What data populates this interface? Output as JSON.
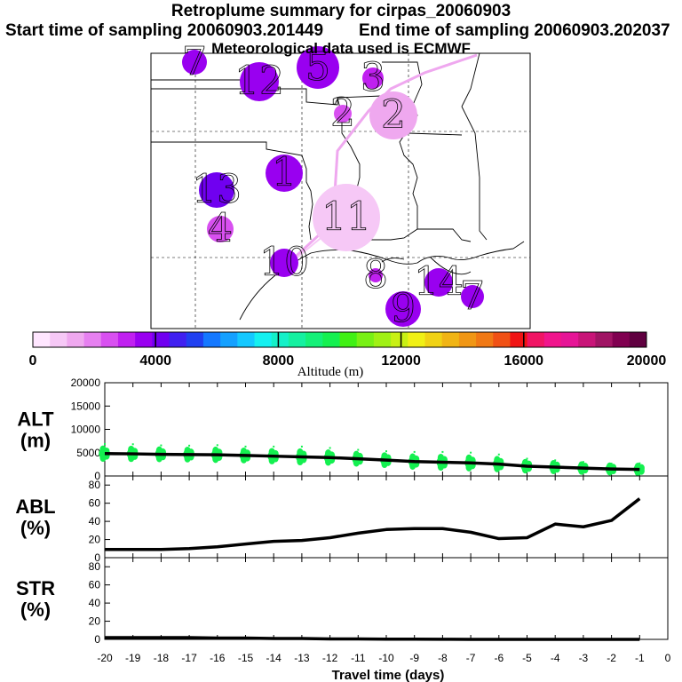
{
  "titles": {
    "main": "Retroplume summary for cirpas_20060903",
    "start": "Start time of sampling 20060903.201449",
    "end": "End time of sampling 20060903.202037",
    "met": "Meteorological data used is ECMWF"
  },
  "colorbar": {
    "label": "Altitude (m)",
    "ticks": [
      "0",
      "4000",
      "8000",
      "12000",
      "16000",
      "20000"
    ],
    "colors": [
      "#ffe6ff",
      "#f6c8f6",
      "#efa8ef",
      "#e680f0",
      "#d850f0",
      "#c020f0",
      "#9900f0",
      "#7000f0",
      "#4020f0",
      "#2040f0",
      "#1478ff",
      "#14a0ff",
      "#14c8ff",
      "#14f0f0",
      "#14f0c8",
      "#14f0a0",
      "#14f078",
      "#14f050",
      "#40f014",
      "#78f014",
      "#a0f014",
      "#c8f014",
      "#f0f014",
      "#f0d214",
      "#f0b414",
      "#f09614",
      "#f07814",
      "#f05014",
      "#f01414",
      "#f01464",
      "#f0148c",
      "#e61496",
      "#c81478",
      "#a01464",
      "#800050",
      "#600040"
    ]
  },
  "map_markers": [
    {
      "label": "7",
      "color": "#9900f0",
      "r": 14
    },
    {
      "label": "12",
      "color": "#9900f0",
      "r": 22
    },
    {
      "label": "5",
      "color": "#9900f0",
      "r": 24
    },
    {
      "label": "3",
      "color": "#c020f0",
      "r": 12
    },
    {
      "label": "2",
      "color": "#efa8ef",
      "r": 27
    },
    {
      "label": "2",
      "color": "#d850f0",
      "r": 10
    },
    {
      "label": "1",
      "color": "#9900f0",
      "r": 21
    },
    {
      "label": "13",
      "color": "#7000f0",
      "r": 20
    },
    {
      "label": "4",
      "color": "#d850f0",
      "r": 15
    },
    {
      "label": "11",
      "color": "#f6c8f6",
      "r": 38
    },
    {
      "label": "10",
      "color": "#9900f0",
      "r": 16
    },
    {
      "label": "8",
      "color": "#c020f0",
      "r": 8
    },
    {
      "label": "14",
      "color": "#9900f0",
      "r": 16
    },
    {
      "label": "7",
      "color": "#9900f0",
      "r": 13
    },
    {
      "label": "9",
      "color": "#9900f0",
      "r": 20
    }
  ],
  "panel_labels": {
    "alt": [
      "ALT",
      "(m)"
    ],
    "abl": [
      "ABL",
      "(%)"
    ],
    "str": [
      "STR",
      "(%)"
    ]
  },
  "axis_ticks": {
    "alt": [
      "20000",
      "15000",
      "10000",
      "5000",
      "0"
    ],
    "abl": [
      "80",
      "60",
      "40",
      "20",
      "0"
    ],
    "str": [
      "80",
      "60",
      "40",
      "20",
      "0"
    ],
    "x": [
      "-20",
      "-19",
      "-18",
      "-17",
      "-16",
      "-15",
      "-14",
      "-13",
      "-12",
      "-11",
      "-10",
      "-9",
      "-8",
      "-7",
      "-6",
      "-5",
      "-4",
      "-3",
      "-2",
      "-1",
      "0"
    ]
  },
  "x_label": "Travel time (days)",
  "chart_data": [
    {
      "type": "line",
      "title": "ALT",
      "ylabel": "ALT (m)",
      "xlabel": "Travel time (days)",
      "xlim": [
        -20,
        0
      ],
      "ylim": [
        0,
        20000
      ],
      "x": [
        -20,
        -19,
        -18,
        -17,
        -16,
        -15,
        -14,
        -13,
        -12,
        -11,
        -10,
        -9,
        -8,
        -7,
        -6,
        -5,
        -4,
        -3,
        -2,
        -1
      ],
      "values": [
        4800,
        4750,
        4650,
        4600,
        4550,
        4400,
        4250,
        4100,
        3950,
        3700,
        3400,
        3100,
        2950,
        2800,
        2550,
        2100,
        1900,
        1700,
        1500,
        1400
      ],
      "scatter_color": "#14f050",
      "scatter_spread": [
        1500,
        1500,
        1400,
        1400,
        1500,
        1400,
        1500,
        1600,
        1500,
        1400,
        1400,
        1500,
        1600,
        1600,
        1500,
        1200,
        1100,
        1000,
        900,
        1000
      ]
    },
    {
      "type": "line",
      "title": "ABL",
      "ylabel": "ABL (%)",
      "xlabel": "Travel time (days)",
      "xlim": [
        -20,
        0
      ],
      "ylim": [
        0,
        90
      ],
      "x": [
        -20,
        -19,
        -18,
        -17,
        -16,
        -15,
        -14,
        -13,
        -12,
        -11,
        -10,
        -9,
        -8,
        -7,
        -6,
        -5,
        -4,
        -3,
        -2,
        -1
      ],
      "values": [
        9,
        9,
        9,
        10,
        12,
        15,
        18,
        19,
        22,
        27,
        31,
        32,
        32,
        28,
        21,
        22,
        37,
        34,
        41,
        65
      ]
    },
    {
      "type": "line",
      "title": "STR",
      "ylabel": "STR (%)",
      "xlabel": "Travel time (days)",
      "xlim": [
        -20,
        0
      ],
      "ylim": [
        0,
        90
      ],
      "x": [
        -20,
        -19,
        -18,
        -17,
        -16,
        -15,
        -14,
        -13,
        -12,
        -11,
        -10,
        -9,
        -8,
        -7,
        -6,
        -5,
        -4,
        -3,
        -2,
        -1
      ],
      "values": [
        2,
        2,
        2,
        2,
        1.5,
        1.5,
        1,
        1,
        0.5,
        0.5,
        0.3,
        0.2,
        0.1,
        0,
        0,
        0,
        0,
        0,
        0,
        0
      ]
    }
  ]
}
